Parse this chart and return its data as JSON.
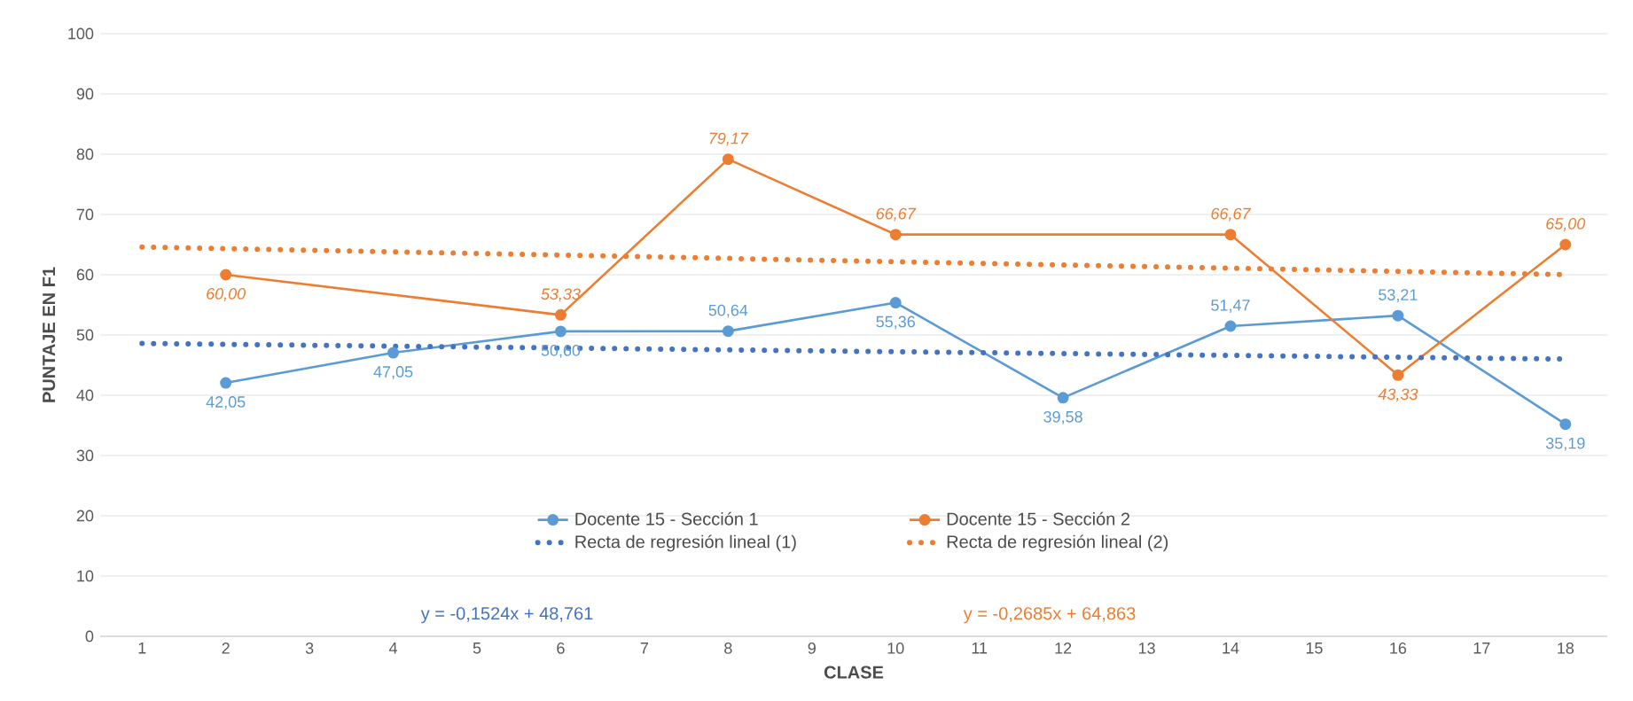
{
  "chart_data": {
    "type": "line",
    "xlabel": "CLASE",
    "ylabel": "PUNTAJE EN F1",
    "xlim": [
      0.5,
      18.5
    ],
    "xticks": [
      1,
      2,
      3,
      4,
      5,
      6,
      7,
      8,
      9,
      10,
      11,
      12,
      13,
      14,
      15,
      16,
      17,
      18
    ],
    "ylim": [
      0,
      100
    ],
    "yticks": [
      0,
      10,
      20,
      30,
      40,
      50,
      60,
      70,
      80,
      90,
      100
    ],
    "grid": "y",
    "legend": "bottom",
    "series": [
      {
        "name": "Docente 15 - Sección 1",
        "color": "#5b9bd5",
        "marker": "circle",
        "x": [
          2,
          4,
          6,
          8,
          10,
          12,
          14,
          16,
          18
        ],
        "values": [
          42.05,
          47.05,
          50.6,
          50.64,
          55.36,
          39.58,
          51.47,
          53.21,
          35.19
        ],
        "value_labels": [
          "42,05",
          "47,05",
          "50,60",
          "50,64",
          "55,36",
          "39,58",
          "51,47",
          "53,21",
          "35,19"
        ]
      },
      {
        "name": "Docente 15 - Sección 2",
        "color": "#ed7d31",
        "marker": "circle",
        "x": [
          2,
          6,
          8,
          10,
          14,
          16,
          18
        ],
        "values": [
          60.0,
          53.33,
          79.17,
          66.67,
          66.67,
          43.33,
          65.0
        ],
        "value_labels": [
          "60,00",
          "53,33",
          "79,17",
          "66,67",
          "66,67",
          "43,33",
          "65,00"
        ]
      },
      {
        "name": "Recta de regresión lineal (1)",
        "color": "#4472c4",
        "marker": "none",
        "line_style": "dotted",
        "x": [
          1,
          18
        ],
        "values": [
          48.6,
          46.0
        ]
      },
      {
        "name": "Recta de regresión lineal (2)",
        "color": "#ed7d31",
        "marker": "none",
        "line_style": "dotted",
        "x": [
          1,
          18
        ],
        "values": [
          64.6,
          60.0
        ]
      }
    ],
    "annotations": [
      "y = -0,1524x + 48,761",
      "y = -0,2685x + 64,863"
    ]
  }
}
